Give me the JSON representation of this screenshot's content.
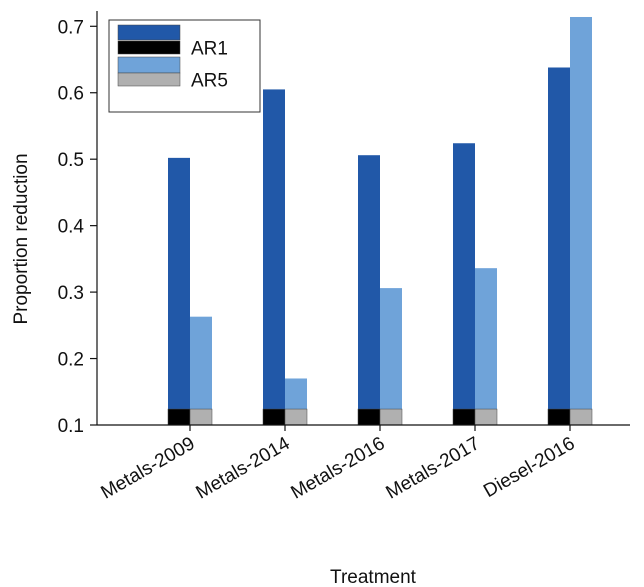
{
  "chart_data": {
    "type": "bar",
    "title": "",
    "xlabel": "Treatment",
    "ylabel": "Proportion reduction",
    "ylim": [
      0.1,
      0.72
    ],
    "yticks": [
      "0.1",
      "0.2",
      "0.3",
      "0.4",
      "0.5",
      "0.6",
      "0.7"
    ],
    "categories": [
      "Metals-2009",
      "Metals-2014",
      "Metals-2016",
      "Metals-2017",
      "Diesel-2016"
    ],
    "series": [
      {
        "name": "",
        "color": "#2158a8",
        "values": [
          0.502,
          0.605,
          0.506,
          0.524,
          0.638
        ]
      },
      {
        "name": "AR1",
        "color": "#000000",
        "values": [
          0.124,
          0.124,
          0.124,
          0.124,
          0.124
        ]
      },
      {
        "name": "",
        "color": "#6fa3d9",
        "values": [
          0.263,
          0.17,
          0.306,
          0.336,
          0.714
        ]
      },
      {
        "name": "AR5",
        "color": "#b0b0b0",
        "values": [
          0.124,
          0.124,
          0.124,
          0.124,
          0.124
        ]
      }
    ],
    "legend": {
      "placement": "top-left"
    },
    "grid": false
  }
}
